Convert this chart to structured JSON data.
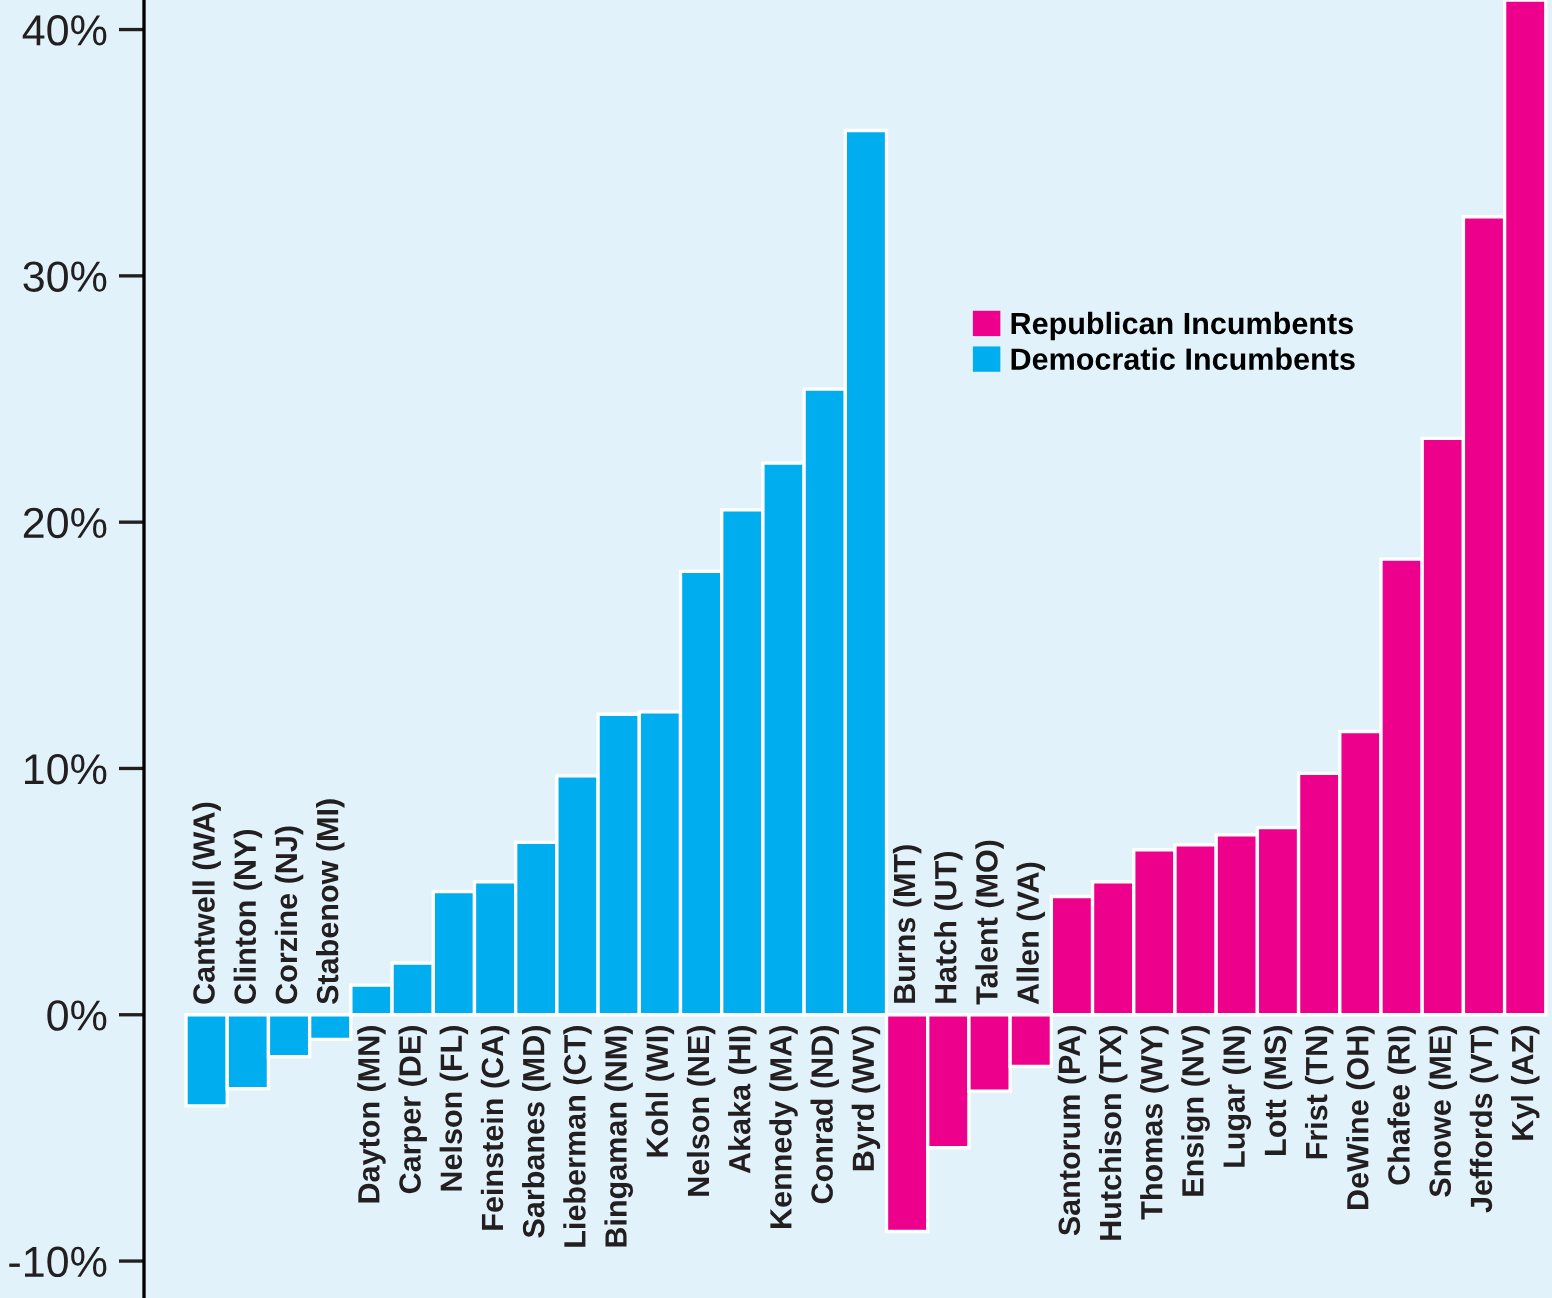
{
  "chart_data": {
    "type": "bar",
    "categories": [
      "Cantwell (WA)",
      "Clinton (NY)",
      "Corzine (NJ)",
      "Stabenow (MI)",
      "Dayton (MN)",
      "Carper (DE)",
      "Nelson (FL)",
      "Feinstein (CA)",
      "Sarbanes (MD)",
      "Lieberman (CT)",
      "Bingaman (NM)",
      "Kohl (WI)",
      "Nelson (NE)",
      "Akaka (HI)",
      "Kennedy (MA)",
      "Conrad (ND)",
      "Byrd (WV)",
      "Burns (MT)",
      "Hatch (UT)",
      "Talent (MO)",
      "Allen (VA)",
      "Santorum (PA)",
      "Hutchison (TX)",
      "Thomas (WY)",
      "Ensign (NV)",
      "Lugar (IN)",
      "Lott (MS)",
      "Frist (TN)",
      "DeWine (OH)",
      "Chafee (RI)",
      "Snowe (ME)",
      "Jeffords (VT)",
      "Kyl (AZ)"
    ],
    "series": [
      {
        "name": "Republican Incumbents",
        "color": "#ec008c",
        "values": [
          null,
          null,
          null,
          null,
          null,
          null,
          null,
          null,
          null,
          null,
          null,
          null,
          null,
          null,
          null,
          null,
          null,
          -8.8,
          -5.4,
          -3.1,
          -2.1,
          4.8,
          5.4,
          6.7,
          6.9,
          7.3,
          7.6,
          9.8,
          11.5,
          18.5,
          23.4,
          32.4,
          41.2
        ]
      },
      {
        "name": "Democratic Incumbents",
        "color": "#00aeef",
        "values": [
          -3.7,
          -3.0,
          -1.7,
          -1.0,
          1.2,
          2.1,
          5.0,
          5.4,
          7.0,
          9.7,
          12.2,
          12.3,
          18.0,
          20.5,
          22.4,
          25.4,
          35.9,
          null,
          null,
          null,
          null,
          null,
          null,
          null,
          null,
          null,
          null,
          null,
          null,
          null,
          null,
          null,
          null
        ]
      }
    ],
    "ylim": [
      -11.5,
      41.2
    ],
    "yticks": [
      {
        "value": -10,
        "label": "-10%"
      },
      {
        "value": 0,
        "label": "0%"
      },
      {
        "value": 10,
        "label": "10%"
      },
      {
        "value": 20,
        "label": "20%"
      },
      {
        "value": 30,
        "label": "30%"
      },
      {
        "value": 40,
        "label": "40%"
      }
    ],
    "legend": "top"
  }
}
